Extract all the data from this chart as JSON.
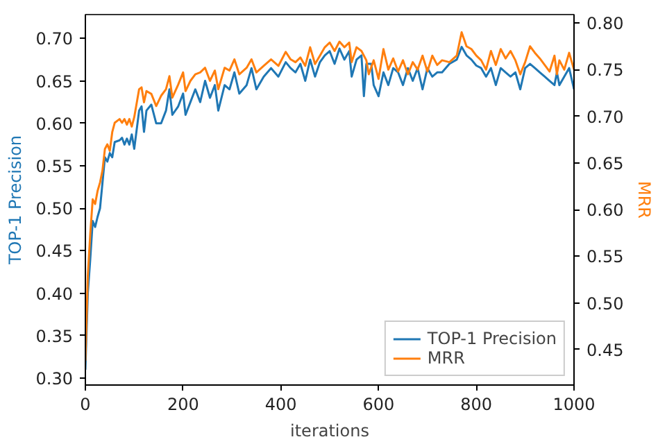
{
  "chart_data": {
    "type": "line",
    "xlabel": "iterations",
    "ylabel": "TOP-1 Precision",
    "y2label": "MRR",
    "xlim": [
      0,
      1000
    ],
    "xticks": [
      0,
      200,
      400,
      600,
      800,
      1000
    ],
    "ylim": [
      0.292,
      0.728
    ],
    "yticks": [
      {
        "value": 0.3,
        "label": "0.30"
      },
      {
        "value": 0.35,
        "label": "0.35"
      },
      {
        "value": 0.4,
        "label": "0.40"
      },
      {
        "value": 0.45,
        "label": "0.45"
      },
      {
        "value": 0.5,
        "label": "0.50"
      },
      {
        "value": 0.55,
        "label": "0.55"
      },
      {
        "value": 0.6,
        "label": "0.60"
      },
      {
        "value": 0.65,
        "label": "0.65"
      },
      {
        "value": 0.7,
        "label": "0.70"
      }
    ],
    "y2lim": [
      0.412,
      0.809
    ],
    "y2ticks": [
      {
        "value": 0.45,
        "label": "0.45"
      },
      {
        "value": 0.5,
        "label": "0.50"
      },
      {
        "value": 0.55,
        "label": "0.55"
      },
      {
        "value": 0.6,
        "label": "0.60"
      },
      {
        "value": 0.65,
        "label": "0.65"
      },
      {
        "value": 0.7,
        "label": "0.70"
      },
      {
        "value": 0.75,
        "label": "0.75"
      },
      {
        "value": 0.8,
        "label": "0.80"
      }
    ],
    "legend": "bottom right",
    "grid": false,
    "series": [
      {
        "name": "TOP-1 Precision",
        "color": "#1f77b4",
        "x": [
          0,
          5,
          10,
          15,
          20,
          25,
          30,
          35,
          40,
          45,
          50,
          55,
          60,
          70,
          75,
          80,
          85,
          90,
          95,
          100,
          110,
          115,
          120,
          125,
          135,
          145,
          155,
          165,
          172,
          178,
          190,
          200,
          205,
          215,
          225,
          235,
          245,
          255,
          265,
          272,
          285,
          295,
          305,
          315,
          330,
          340,
          350,
          365,
          380,
          395,
          410,
          420,
          430,
          440,
          450,
          460,
          470,
          480,
          490,
          500,
          510,
          520,
          530,
          540,
          545,
          555,
          565,
          570,
          575,
          585,
          590,
          600,
          610,
          620,
          630,
          640,
          650,
          660,
          670,
          680,
          690,
          700,
          710,
          720,
          730,
          745,
          760,
          770,
          780,
          790,
          800,
          810,
          820,
          830,
          840,
          850,
          860,
          870,
          880,
          890,
          900,
          910,
          920,
          930,
          940,
          950,
          960,
          965,
          970,
          980,
          990,
          1000
        ],
        "values": [
          0.31,
          0.4,
          0.44,
          0.485,
          0.478,
          0.49,
          0.5,
          0.53,
          0.56,
          0.555,
          0.565,
          0.56,
          0.578,
          0.58,
          0.583,
          0.575,
          0.582,
          0.575,
          0.587,
          0.57,
          0.615,
          0.62,
          0.59,
          0.615,
          0.622,
          0.6,
          0.6,
          0.615,
          0.64,
          0.61,
          0.62,
          0.635,
          0.61,
          0.625,
          0.64,
          0.625,
          0.65,
          0.63,
          0.645,
          0.615,
          0.645,
          0.64,
          0.66,
          0.635,
          0.645,
          0.665,
          0.64,
          0.655,
          0.665,
          0.655,
          0.672,
          0.665,
          0.66,
          0.67,
          0.65,
          0.675,
          0.655,
          0.672,
          0.68,
          0.685,
          0.67,
          0.688,
          0.675,
          0.685,
          0.655,
          0.675,
          0.68,
          0.632,
          0.67,
          0.67,
          0.645,
          0.632,
          0.66,
          0.645,
          0.665,
          0.66,
          0.645,
          0.665,
          0.65,
          0.665,
          0.64,
          0.665,
          0.655,
          0.66,
          0.66,
          0.67,
          0.675,
          0.69,
          0.68,
          0.675,
          0.668,
          0.665,
          0.655,
          0.665,
          0.645,
          0.665,
          0.66,
          0.655,
          0.66,
          0.64,
          0.665,
          0.67,
          0.665,
          0.66,
          0.655,
          0.65,
          0.645,
          0.66,
          0.645,
          0.655,
          0.665,
          0.64
        ]
      },
      {
        "name": "MRR",
        "color": "#ff7f0e",
        "axis": "y2",
        "x": [
          0,
          5,
          10,
          15,
          20,
          25,
          30,
          35,
          40,
          45,
          50,
          55,
          60,
          70,
          75,
          80,
          85,
          90,
          95,
          100,
          110,
          115,
          120,
          125,
          135,
          145,
          155,
          165,
          172,
          178,
          190,
          200,
          205,
          215,
          225,
          235,
          245,
          255,
          265,
          272,
          285,
          295,
          305,
          315,
          330,
          340,
          350,
          365,
          380,
          395,
          410,
          420,
          430,
          440,
          450,
          460,
          470,
          480,
          490,
          500,
          510,
          520,
          530,
          540,
          545,
          555,
          565,
          575,
          580,
          590,
          600,
          610,
          620,
          630,
          640,
          650,
          660,
          670,
          680,
          690,
          700,
          710,
          720,
          730,
          745,
          760,
          770,
          780,
          790,
          800,
          810,
          820,
          830,
          840,
          850,
          860,
          870,
          880,
          890,
          900,
          910,
          920,
          930,
          940,
          950,
          960,
          965,
          970,
          980,
          990,
          1000
        ],
        "values": [
          0.438,
          0.529,
          0.574,
          0.611,
          0.606,
          0.62,
          0.629,
          0.642,
          0.665,
          0.67,
          0.663,
          0.683,
          0.693,
          0.697,
          0.693,
          0.697,
          0.691,
          0.697,
          0.689,
          0.699,
          0.729,
          0.731,
          0.715,
          0.727,
          0.724,
          0.711,
          0.722,
          0.729,
          0.743,
          0.72,
          0.734,
          0.747,
          0.727,
          0.738,
          0.745,
          0.747,
          0.752,
          0.738,
          0.749,
          0.729,
          0.752,
          0.749,
          0.761,
          0.745,
          0.752,
          0.761,
          0.747,
          0.754,
          0.761,
          0.754,
          0.769,
          0.761,
          0.758,
          0.763,
          0.754,
          0.774,
          0.756,
          0.765,
          0.774,
          0.779,
          0.77,
          0.78,
          0.774,
          0.779,
          0.758,
          0.774,
          0.77,
          0.76,
          0.745,
          0.76,
          0.74,
          0.772,
          0.75,
          0.762,
          0.748,
          0.76,
          0.745,
          0.758,
          0.75,
          0.765,
          0.748,
          0.765,
          0.755,
          0.76,
          0.758,
          0.765,
          0.79,
          0.775,
          0.772,
          0.765,
          0.76,
          0.75,
          0.77,
          0.755,
          0.772,
          0.762,
          0.77,
          0.76,
          0.745,
          0.758,
          0.775,
          0.768,
          0.762,
          0.755,
          0.748,
          0.765,
          0.745,
          0.76,
          0.75,
          0.768,
          0.75
        ]
      }
    ]
  }
}
